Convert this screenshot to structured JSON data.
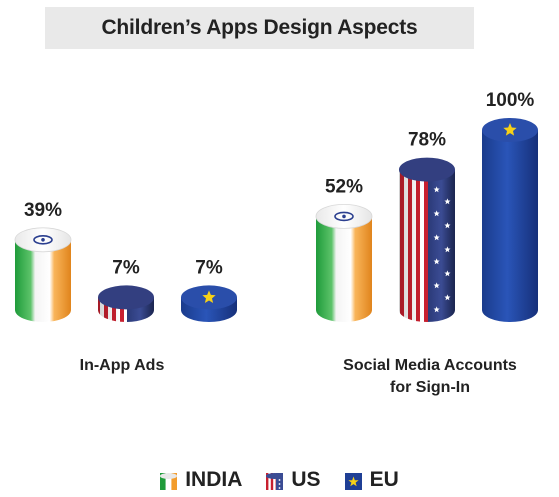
{
  "chart_data": {
    "type": "bar",
    "title": "Children’s Apps Design Aspects",
    "categories": [
      "In-App Ads",
      "Social Media Accounts for Sign-In"
    ],
    "category_lines": [
      [
        "In-App Ads"
      ],
      [
        "Social Media Accounts",
        "for Sign-In"
      ]
    ],
    "series": [
      {
        "name": "INDIA",
        "values": [
          39,
          52
        ],
        "labels": [
          "39%",
          "52%"
        ],
        "icon": "india-flag-icon",
        "color": "#f39c2b"
      },
      {
        "name": "US",
        "values": [
          7,
          78
        ],
        "labels": [
          "7%",
          "78%"
        ],
        "icon": "us-flag-icon",
        "color": "#b22234"
      },
      {
        "name": "EU",
        "values": [
          7,
          100
        ],
        "labels": [
          "7%",
          "100%"
        ],
        "icon": "eu-flag-icon",
        "color": "#1f3f95"
      }
    ],
    "ylim": [
      0,
      100
    ],
    "legend_position": "bottom"
  }
}
